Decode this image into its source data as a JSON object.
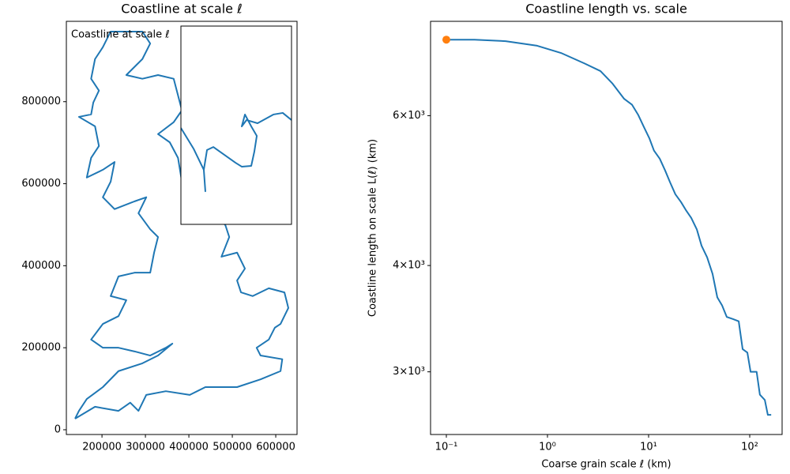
{
  "chart_data": [
    {
      "type": "line",
      "title": "Coastline at scale ℓ",
      "annotation": "Coastline at scale ℓ",
      "color": "#1f77b4",
      "x": [
        138000,
        184000,
        238000,
        265000,
        284000,
        302000,
        347000,
        402000,
        438000,
        511000,
        565000,
        611000,
        615000,
        565000,
        556000,
        584000,
        598000,
        611000,
        629000,
        620000,
        584000,
        547000,
        520000,
        511000,
        529000,
        511000,
        475000,
        493000,
        484000,
        456000,
        420000,
        402000,
        384000,
        375000,
        356000,
        329000,
        365000,
        384000,
        365000,
        329000,
        293000,
        256000,
        293000,
        311000,
        293000,
        238000,
        220000,
        202000,
        184000,
        175000,
        193000,
        180000,
        175000,
        147000,
        184000,
        193000,
        175000,
        165000,
        202000,
        229000,
        220000,
        202000,
        229000,
        275000,
        302000,
        284000,
        311000,
        329000,
        320000,
        311000,
        275000,
        238000,
        220000,
        256000,
        238000,
        202000,
        175000,
        202000,
        238000,
        275000,
        311000,
        347000,
        362000,
        329000,
        293000,
        238000,
        202000,
        165000,
        147000,
        138000
      ],
      "values": [
        27000,
        56000,
        46000,
        66000,
        46000,
        85000,
        94000,
        85000,
        104000,
        104000,
        123000,
        143000,
        172000,
        181000,
        200000,
        220000,
        249000,
        258000,
        297000,
        335000,
        345000,
        326000,
        335000,
        364000,
        393000,
        432000,
        422000,
        470000,
        499000,
        528000,
        547000,
        586000,
        605000,
        663000,
        701000,
        721000,
        750000,
        779000,
        856000,
        865000,
        856000,
        865000,
        904000,
        942000,
        971000,
        971000,
        971000,
        933000,
        904000,
        856000,
        827000,
        798000,
        769000,
        763000,
        740000,
        692000,
        663000,
        615000,
        634000,
        653000,
        605000,
        567000,
        538000,
        557000,
        567000,
        528000,
        489000,
        470000,
        432000,
        383000,
        383000,
        374000,
        326000,
        316000,
        277000,
        258000,
        220000,
        200000,
        200000,
        191000,
        181000,
        200000,
        210000,
        181000,
        162000,
        143000,
        104000,
        75000,
        46000,
        27000
      ],
      "xlim": [
        118000,
        649000
      ],
      "ylim": [
        -11600,
        996000
      ],
      "xticks": [
        200000,
        300000,
        400000,
        500000,
        600000
      ],
      "yticks": [
        0,
        200000,
        400000,
        600000,
        800000
      ]
    },
    {
      "type": "line",
      "color": "#1f77b4",
      "x": [
        0,
        0.114,
        0.207,
        0.221,
        0.207,
        0.236,
        0.293,
        0.493,
        0.55,
        0.636,
        0.664,
        0.686,
        0.636,
        0.579,
        0.55,
        0.593,
        0.693,
        0.836,
        0.921,
        1.0
      ],
      "values": [
        0.486,
        0.382,
        0.275,
        0.167,
        0.275,
        0.375,
        0.39,
        0.311,
        0.291,
        0.295,
        0.367,
        0.446,
        0.494,
        0.554,
        0.494,
        0.526,
        0.51,
        0.554,
        0.562,
        0.526
      ],
      "xlim": [
        0,
        1
      ],
      "ylim": [
        0,
        1
      ]
    },
    {
      "type": "line",
      "title": "Coastline length vs. scale",
      "xlabel": "Coarse grain scale ℓ (km)",
      "ylabel": "Coastline length on scale L(ℓ) (km)",
      "color": "#1f77b4",
      "xscale": "log",
      "yscale": "log",
      "x": [
        0.1,
        0.19,
        0.386,
        0.791,
        1.36,
        2.33,
        3.34,
        4.37,
        5.73,
        6.86,
        7.91,
        8.98,
        10.2,
        11.3,
        12.9,
        14.6,
        16.3,
        18.4,
        20.9,
        23.3,
        26.4,
        30.0,
        33.4,
        37.9,
        42.9,
        47.8,
        53.3,
        59.3,
        68.5,
        77.8,
        85.1,
        94.8,
        102,
        117,
        126,
        141,
        151,
        163
      ],
      "values": [
        7370,
        7370,
        7340,
        7250,
        7110,
        6910,
        6770,
        6550,
        6280,
        6180,
        6010,
        5820,
        5640,
        5460,
        5340,
        5170,
        5010,
        4850,
        4750,
        4650,
        4550,
        4410,
        4220,
        4090,
        3910,
        3670,
        3590,
        3480,
        3460,
        3440,
        3190,
        3160,
        3000,
        3000,
        2820,
        2780,
        2670,
        2670
      ],
      "highlight": {
        "x": 0.1,
        "value": 7370,
        "color": "#ff7f0e"
      },
      "xlim": [
        0.0698,
        209
      ],
      "ylim": [
        2532,
        7745
      ],
      "xticks": [
        {
          "value": 0.1,
          "label": "10⁻¹"
        },
        {
          "value": 1,
          "label": "10⁰"
        },
        {
          "value": 10,
          "label": "10¹"
        },
        {
          "value": 100,
          "label": "10²"
        }
      ],
      "yticks": [
        {
          "value": 3000,
          "label": "3×10³"
        },
        {
          "value": 4000,
          "label": "4×10³"
        },
        {
          "value": 6000,
          "label": "6×10³"
        }
      ]
    }
  ]
}
